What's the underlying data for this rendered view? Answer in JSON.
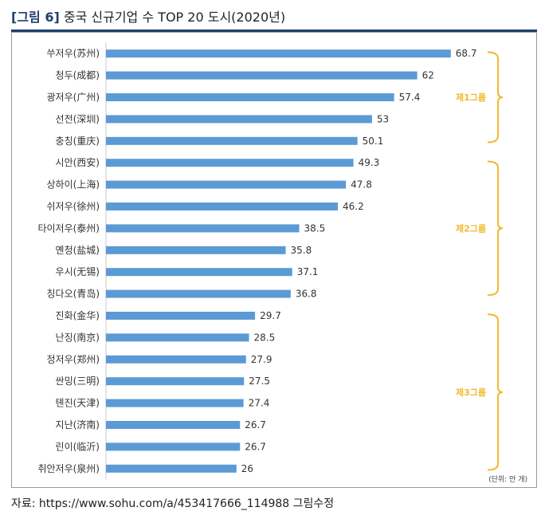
{
  "figure": {
    "fig_label": "[그림 6]",
    "title": "중국 신규기업 수 TOP 20 도시(2020년)"
  },
  "unit_note": "(단위: 만 개)",
  "source": "자료:  https://www.sohu.com/a/453417666_114988 그림수정",
  "chart_data": {
    "type": "bar",
    "orientation": "horizontal",
    "categories": [
      "쑤저우(苏州)",
      "청두(成都)",
      "광저우(广州)",
      "선전(深圳)",
      "충칭(重庆)",
      "시안(西安)",
      "상하이(上海)",
      "쉬저우(徐州)",
      "타이저우(泰州)",
      "옌청(盐城)",
      "우시(无锡)",
      "칭다오(青岛)",
      "진화(金华)",
      "난징(南京)",
      "정저우(郑州)",
      "싼밍(三明)",
      "톈진(天津)",
      "지난(济南)",
      "린이(临沂)",
      "취안저우(泉州)"
    ],
    "values": [
      68.7,
      62,
      57.4,
      53,
      50.1,
      49.3,
      47.8,
      46.2,
      38.5,
      35.8,
      37.1,
      36.8,
      29.7,
      28.5,
      27.9,
      27.5,
      27.4,
      26.7,
      26.7,
      26
    ],
    "value_labels": [
      "68.7",
      "62",
      "57.4",
      "53",
      "50.1",
      "49.3",
      "47.8",
      "46.2",
      "38.5",
      "35.8",
      "37.1",
      "36.8",
      "29.7",
      "28.5",
      "27.9",
      "27.5",
      "27.4",
      "26.7",
      "26.7",
      "26"
    ],
    "groups": [
      {
        "label": "제1그룹",
        "from": 0,
        "to": 4
      },
      {
        "label": "제2그룹",
        "from": 5,
        "to": 11
      },
      {
        "label": "제3그룹",
        "from": 12,
        "to": 19
      }
    ],
    "grid": false,
    "colors": {
      "bar": "#5b9bd5",
      "group": "#f2b92c",
      "axis": "#c9c9c9"
    }
  }
}
